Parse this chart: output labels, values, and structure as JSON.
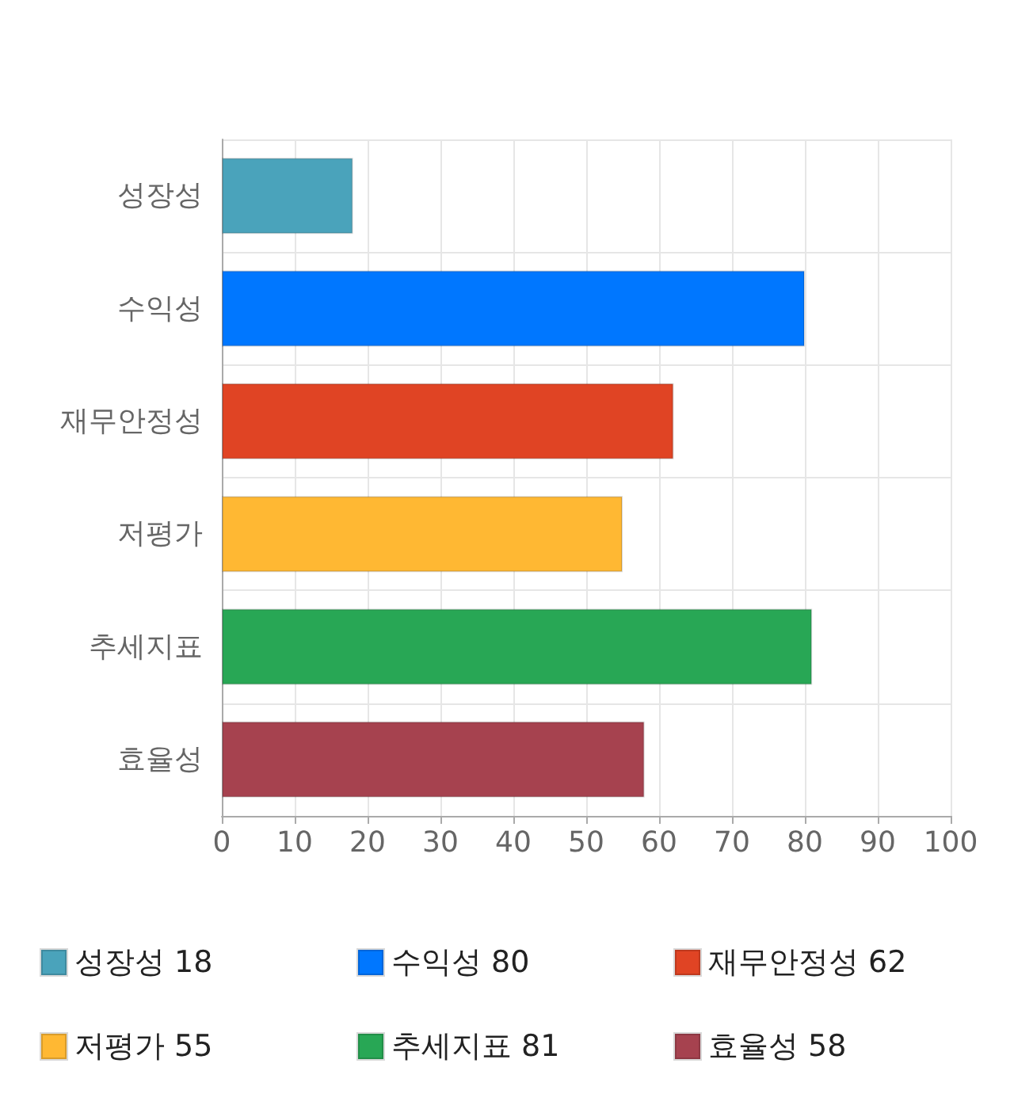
{
  "chart_data": {
    "type": "bar",
    "orientation": "horizontal",
    "categories": [
      "성장성",
      "수익성",
      "재무안정성",
      "저평가",
      "추세지표",
      "효율성"
    ],
    "series": [
      {
        "name": "성장성",
        "color": "#4aa3bb",
        "values": [
          18,
          null,
          null,
          null,
          null,
          null
        ]
      },
      {
        "name": "수익성",
        "color": "#0077ff",
        "values": [
          null,
          80,
          null,
          null,
          null,
          null
        ]
      },
      {
        "name": "재무안정성",
        "color": "#e04424",
        "values": [
          null,
          null,
          62,
          null,
          null,
          null
        ]
      },
      {
        "name": "저평가",
        "color": "#ffb833",
        "values": [
          null,
          null,
          null,
          55,
          null,
          null
        ]
      },
      {
        "name": "추세지표",
        "color": "#28a755",
        "values": [
          null,
          null,
          null,
          null,
          81,
          null
        ]
      },
      {
        "name": "효율성",
        "color": "#a6424f",
        "values": [
          null,
          null,
          null,
          null,
          null,
          58
        ]
      }
    ],
    "annotations": [
      "18",
      "80",
      "62",
      "55",
      "81",
      "58"
    ],
    "xlim": [
      0,
      100
    ],
    "xticks": [
      0,
      10,
      20,
      30,
      40,
      50,
      60,
      70,
      80,
      90,
      100
    ],
    "grid": true,
    "legend": "bottom"
  }
}
